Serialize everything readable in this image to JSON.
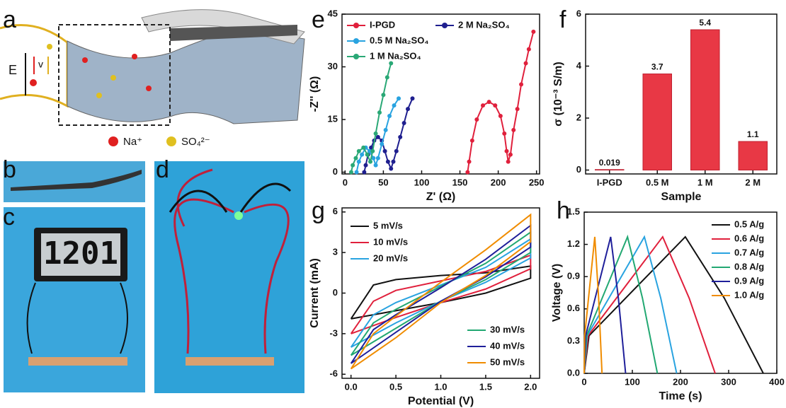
{
  "panels": {
    "a": "a",
    "b": "b",
    "c": "c",
    "d": "d"
  },
  "schematic": {
    "field": "E",
    "velocity": "v",
    "legend": [
      "Na⁺",
      "SO₄²⁻"
    ],
    "display": "1201"
  },
  "chart_data": [
    {
      "type": "line",
      "panel": "e",
      "x_label": "Z' (Ω)",
      "y_label": "-Z'' (Ω)",
      "xlim": [
        -4,
        254
      ],
      "ylim": [
        -0.5,
        45
      ],
      "xticks": [
        0,
        50,
        100,
        150,
        200,
        250
      ],
      "yticks": [
        0,
        15,
        30,
        45
      ],
      "markers": true,
      "series": [
        {
          "name": "I-PGD",
          "color": "#e0203c",
          "x": [
            160,
            162,
            166,
            172,
            180,
            188,
            196,
            203,
            208,
            211,
            213,
            216,
            220,
            225,
            230,
            236,
            240,
            246
          ],
          "values": [
            0,
            3,
            9,
            15,
            19,
            20,
            19,
            16,
            11,
            6,
            3,
            5,
            12,
            18,
            25,
            31,
            35,
            40
          ]
        },
        {
          "name": "2 M Na₂SO₄",
          "color": "#1f1f8f",
          "x": [
            25,
            27,
            30,
            34,
            38,
            43,
            48,
            52,
            56,
            60,
            63,
            67,
            72,
            77,
            82,
            88
          ],
          "values": [
            0,
            2,
            5,
            7,
            9,
            10,
            9,
            6,
            3,
            1,
            3,
            6,
            10,
            14,
            18,
            21
          ]
        },
        {
          "name": "0.5 M Na₂SO₄",
          "color": "#29a3e0",
          "x": [
            15,
            18,
            22,
            27,
            32,
            37,
            40,
            43,
            48,
            53,
            58,
            64,
            70
          ],
          "values": [
            0,
            3,
            5,
            7,
            6,
            4,
            2,
            4,
            8,
            12,
            16,
            19,
            21
          ]
        },
        {
          "name": "1 M Na₂SO₄",
          "color": "#2aa876",
          "x": [
            8,
            10,
            14,
            18,
            24,
            29,
            33,
            36,
            40,
            45,
            50,
            55,
            60
          ],
          "values": [
            0,
            2,
            4,
            6,
            7,
            5,
            3,
            6,
            11,
            17,
            22,
            27,
            31
          ]
        }
      ]
    },
    {
      "type": "bar",
      "panel": "f",
      "x_label": "Sample",
      "y_label": "σ (10⁻³ S/m)",
      "categories": [
        "I-PGD",
        "0.5 M",
        "1 M",
        "2 M"
      ],
      "values": [
        0.019,
        3.7,
        5.4,
        1.1
      ],
      "color": "#e83845",
      "ylim": [
        -0.15,
        6
      ],
      "yticks": [
        0,
        2,
        4,
        6
      ]
    },
    {
      "type": "line",
      "panel": "g",
      "x_label": "Potential (V)",
      "y_label": "Current (mA)",
      "xlim": [
        -0.1,
        2.1
      ],
      "ylim": [
        -6.3,
        6.3
      ],
      "xticks": [
        {
          "value": 0,
          "label": "0.0"
        },
        0.5,
        {
          "value": 1,
          "label": "1.0"
        },
        1.5,
        {
          "value": 2,
          "label": "2.0"
        }
      ],
      "yticks": [
        -6,
        -3,
        0,
        3,
        6
      ],
      "x": [
        0,
        0.25,
        0.5,
        1.0,
        1.5,
        2.0,
        2.0,
        1.5,
        1.0,
        0.5,
        0.0
      ],
      "series": [
        {
          "name": "5 mV/s",
          "color": "#111111",
          "values": [
            -1.9,
            0.6,
            1.0,
            1.3,
            1.5,
            2.0,
            1.1,
            0.0,
            -0.7,
            -1.3,
            -1.9
          ]
        },
        {
          "name": "10 mV/s",
          "color": "#e0203c",
          "values": [
            -3.0,
            -0.6,
            0.2,
            0.9,
            1.6,
            2.8,
            1.8,
            0.3,
            -0.7,
            -1.8,
            -3.0
          ]
        },
        {
          "name": "20 mV/s",
          "color": "#29a3e0",
          "values": [
            -4.0,
            -1.6,
            -0.7,
            0.6,
            1.9,
            4.0,
            2.6,
            0.8,
            -0.6,
            -2.2,
            -4.0
          ]
        },
        {
          "name": "30 mV/s",
          "color": "#22a872",
          "values": [
            -4.6,
            -2.2,
            -1.2,
            0.5,
            2.2,
            4.5,
            3.0,
            1.0,
            -0.6,
            -2.6,
            -4.6
          ]
        },
        {
          "name": "40 mV/s",
          "color": "#1f1f9a",
          "values": [
            -5.2,
            -2.7,
            -1.6,
            0.4,
            2.5,
            5.0,
            3.4,
            1.2,
            -0.6,
            -2.9,
            -5.2
          ]
        },
        {
          "name": "50 mV/s",
          "color": "#f08c00",
          "values": [
            -5.6,
            -3.0,
            -1.7,
            0.8,
            3.2,
            5.8,
            3.8,
            1.3,
            -0.7,
            -3.3,
            -5.6
          ]
        }
      ]
    },
    {
      "type": "line",
      "panel": "h",
      "x_label": "Time (s)",
      "y_label": "Voltage (V)",
      "xlim": [
        0,
        400
      ],
      "ylim": [
        0,
        1.5
      ],
      "xticks": [
        0,
        100,
        200,
        300,
        400
      ],
      "yticks": [
        {
          "value": 0,
          "label": "0.0"
        },
        0.3,
        0.6,
        0.9,
        1.2,
        1.5
      ],
      "series": [
        {
          "name": "0.5 A/g",
          "color": "#111111",
          "x": [
            0,
            10,
            210,
            291,
            372
          ],
          "values": [
            0,
            0.35,
            1.27,
            0.7,
            0
          ]
        },
        {
          "name": "0.6 A/g",
          "color": "#e0203c",
          "x": [
            0,
            8,
            163,
            218,
            272
          ],
          "values": [
            0,
            0.35,
            1.27,
            0.7,
            0
          ]
        },
        {
          "name": "0.7 A/g",
          "color": "#29a3e0",
          "x": [
            0,
            6,
            125,
            159,
            192
          ],
          "values": [
            0,
            0.35,
            1.27,
            0.7,
            0
          ]
        },
        {
          "name": "0.8 A/g",
          "color": "#22a872",
          "x": [
            0,
            5,
            90,
            121,
            152
          ],
          "values": [
            0,
            0.35,
            1.27,
            0.7,
            0
          ]
        },
        {
          "name": "0.9 A/g",
          "color": "#1f1f9a",
          "x": [
            0,
            3,
            55,
            71,
            86
          ],
          "values": [
            0,
            0.35,
            1.27,
            0.7,
            0
          ]
        },
        {
          "name": "1.0 A/g",
          "color": "#f08c00",
          "x": [
            0,
            1,
            22,
            30,
            37
          ],
          "values": [
            0,
            0.35,
            1.27,
            0.7,
            0
          ]
        }
      ]
    }
  ]
}
